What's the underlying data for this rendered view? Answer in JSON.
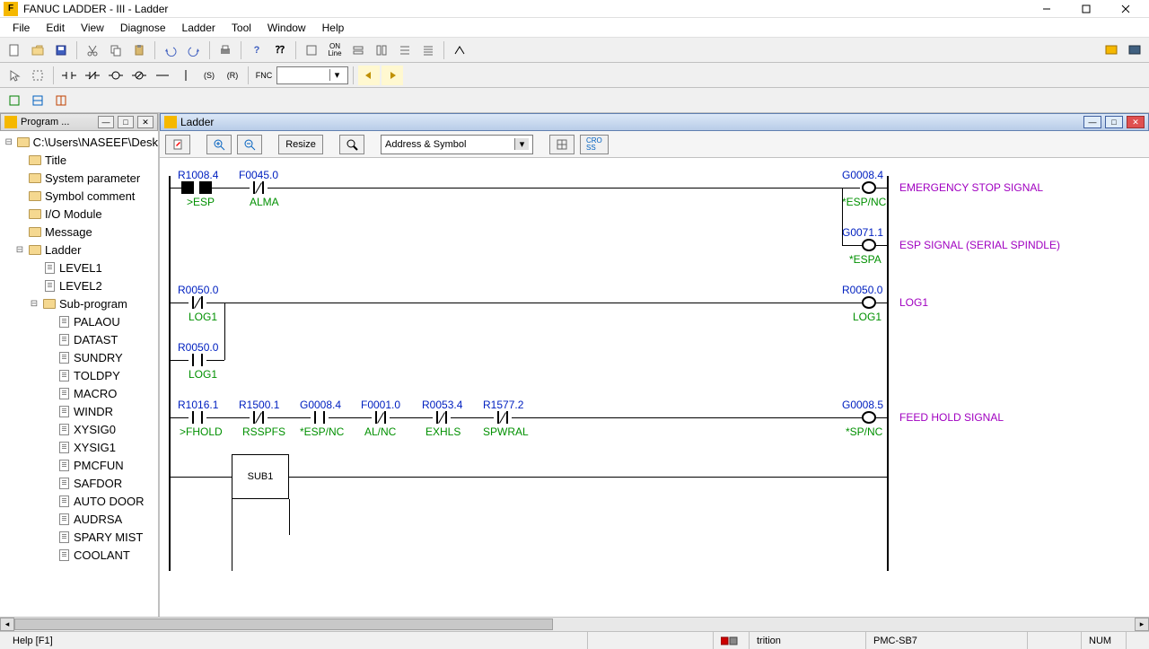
{
  "app": {
    "title": "FANUC LADDER - III - Ladder"
  },
  "menu": [
    "File",
    "Edit",
    "View",
    "Diagnose",
    "Ladder",
    "Tool",
    "Window",
    "Help"
  ],
  "toolbar2_dropdown": "",
  "tree_panel": {
    "title": "Program ...",
    "root": "C:\\Users\\NASEEF\\Desk",
    "items": [
      {
        "label": "Title",
        "type": "folder",
        "indent": 1
      },
      {
        "label": "System parameter",
        "type": "folder",
        "indent": 1
      },
      {
        "label": "Symbol comment",
        "type": "folder",
        "indent": 1
      },
      {
        "label": "I/O Module",
        "type": "folder",
        "indent": 1
      },
      {
        "label": "Message",
        "type": "folder",
        "indent": 1
      },
      {
        "label": "Ladder",
        "type": "folder",
        "indent": 1,
        "exp": "⊟"
      },
      {
        "label": "LEVEL1",
        "type": "doc",
        "indent": 2
      },
      {
        "label": "LEVEL2",
        "type": "doc",
        "indent": 2
      },
      {
        "label": "Sub-program",
        "type": "folder",
        "indent": 2,
        "exp": "⊟"
      },
      {
        "label": "PALAOU",
        "type": "doc",
        "indent": 3
      },
      {
        "label": "DATAST",
        "type": "doc",
        "indent": 3
      },
      {
        "label": "SUNDRY",
        "type": "doc",
        "indent": 3
      },
      {
        "label": "TOLDPY",
        "type": "doc",
        "indent": 3
      },
      {
        "label": "MACRO",
        "type": "doc",
        "indent": 3
      },
      {
        "label": "WINDR",
        "type": "doc",
        "indent": 3
      },
      {
        "label": "XYSIG0",
        "type": "doc",
        "indent": 3
      },
      {
        "label": "XYSIG1",
        "type": "doc",
        "indent": 3
      },
      {
        "label": "PMCFUN",
        "type": "doc",
        "indent": 3
      },
      {
        "label": "SAFDOR",
        "type": "doc",
        "indent": 3
      },
      {
        "label": "AUTO DOOR",
        "type": "doc",
        "indent": 3
      },
      {
        "label": "AUDRSA",
        "type": "doc",
        "indent": 3
      },
      {
        "label": "SPARY MIST",
        "type": "doc",
        "indent": 3
      },
      {
        "label": "COOLANT",
        "type": "doc",
        "indent": 3
      }
    ]
  },
  "ladder_panel": {
    "title": "Ladder",
    "resize_btn": "Resize",
    "address_combo": "Address & Symbol"
  },
  "rungs": {
    "r1": {
      "c1_addr": "R1008.4",
      "c1_sym": ">ESP",
      "c2_addr": "F0045.0",
      "c2_sym": "ALMA",
      "out_addr": "G0008.4",
      "out_sym": "*ESP/NC",
      "comment": "EMERGENCY STOP SIGNAL"
    },
    "r2": {
      "out_addr": "G0071.1",
      "out_sym": "*ESPA",
      "comment": "ESP SIGNAL (SERIAL SPINDLE)"
    },
    "r3": {
      "c1_addr": "R0050.0",
      "c1_sym": "LOG1",
      "out_addr": "R0050.0",
      "out_sym": "LOG1",
      "comment": "LOG1"
    },
    "r4": {
      "c1_addr": "R0050.0",
      "c1_sym": "LOG1"
    },
    "r5": {
      "c1_addr": "R1016.1",
      "c1_sym": ">FHOLD",
      "c2_addr": "R1500.1",
      "c2_sym": "RSSPFS",
      "c3_addr": "G0008.4",
      "c3_sym": "*ESP/NC",
      "c4_addr": "F0001.0",
      "c4_sym": "AL/NC",
      "c5_addr": "R0053.4",
      "c5_sym": "EXHLS",
      "c6_addr": "R1577.2",
      "c6_sym": "SPWRAL",
      "out_addr": "G0008.5",
      "out_sym": "*SP/NC",
      "comment": "FEED HOLD SIGNAL"
    },
    "r6": {
      "box": "SUB1"
    }
  },
  "statusbar": {
    "help": "Help [F1]",
    "cell2": "trition",
    "cell3": "PMC-SB7",
    "cell4": "NUM"
  }
}
